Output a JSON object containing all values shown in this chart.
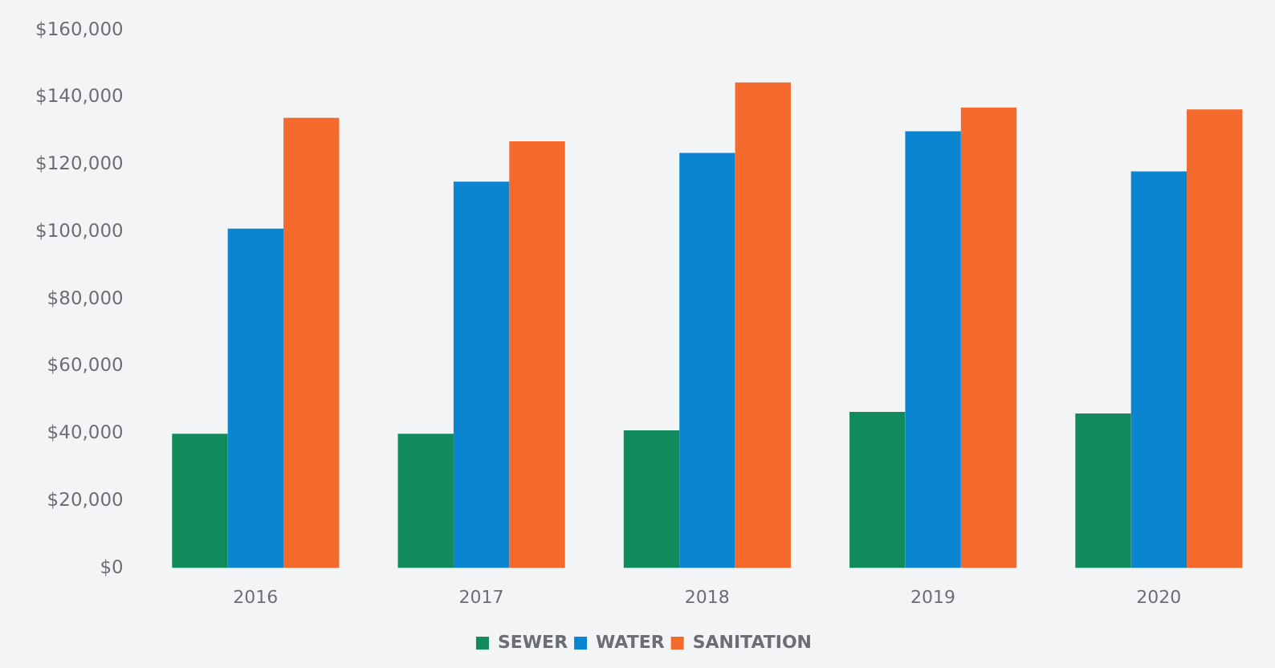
{
  "chart_data": {
    "type": "bar",
    "categories": [
      "2016",
      "2017",
      "2018",
      "2019",
      "2020"
    ],
    "series": [
      {
        "name": "SEWER",
        "color": "#118a5c",
        "values": [
          40000,
          40000,
          41000,
          46500,
          46000
        ]
      },
      {
        "name": "WATER",
        "color": "#0b85cf",
        "values": [
          101000,
          115000,
          123500,
          130000,
          118000
        ]
      },
      {
        "name": "SANITATION",
        "color": "#f36a2c",
        "values": [
          134000,
          127000,
          144500,
          137000,
          136500
        ]
      }
    ],
    "ylim": [
      0,
      160000
    ],
    "yticks": [
      {
        "value": 0,
        "label": "$0"
      },
      {
        "value": 20000,
        "label": "$20,000"
      },
      {
        "value": 40000,
        "label": "$40,000"
      },
      {
        "value": 60000,
        "label": "$60,000"
      },
      {
        "value": 80000,
        "label": "$80,000"
      },
      {
        "value": 100000,
        "label": "$100,000"
      },
      {
        "value": 120000,
        "label": "$120,000"
      },
      {
        "value": 140000,
        "label": "$140,000"
      },
      {
        "value": 160000,
        "label": "$160,000"
      }
    ],
    "legend": "bottom"
  }
}
